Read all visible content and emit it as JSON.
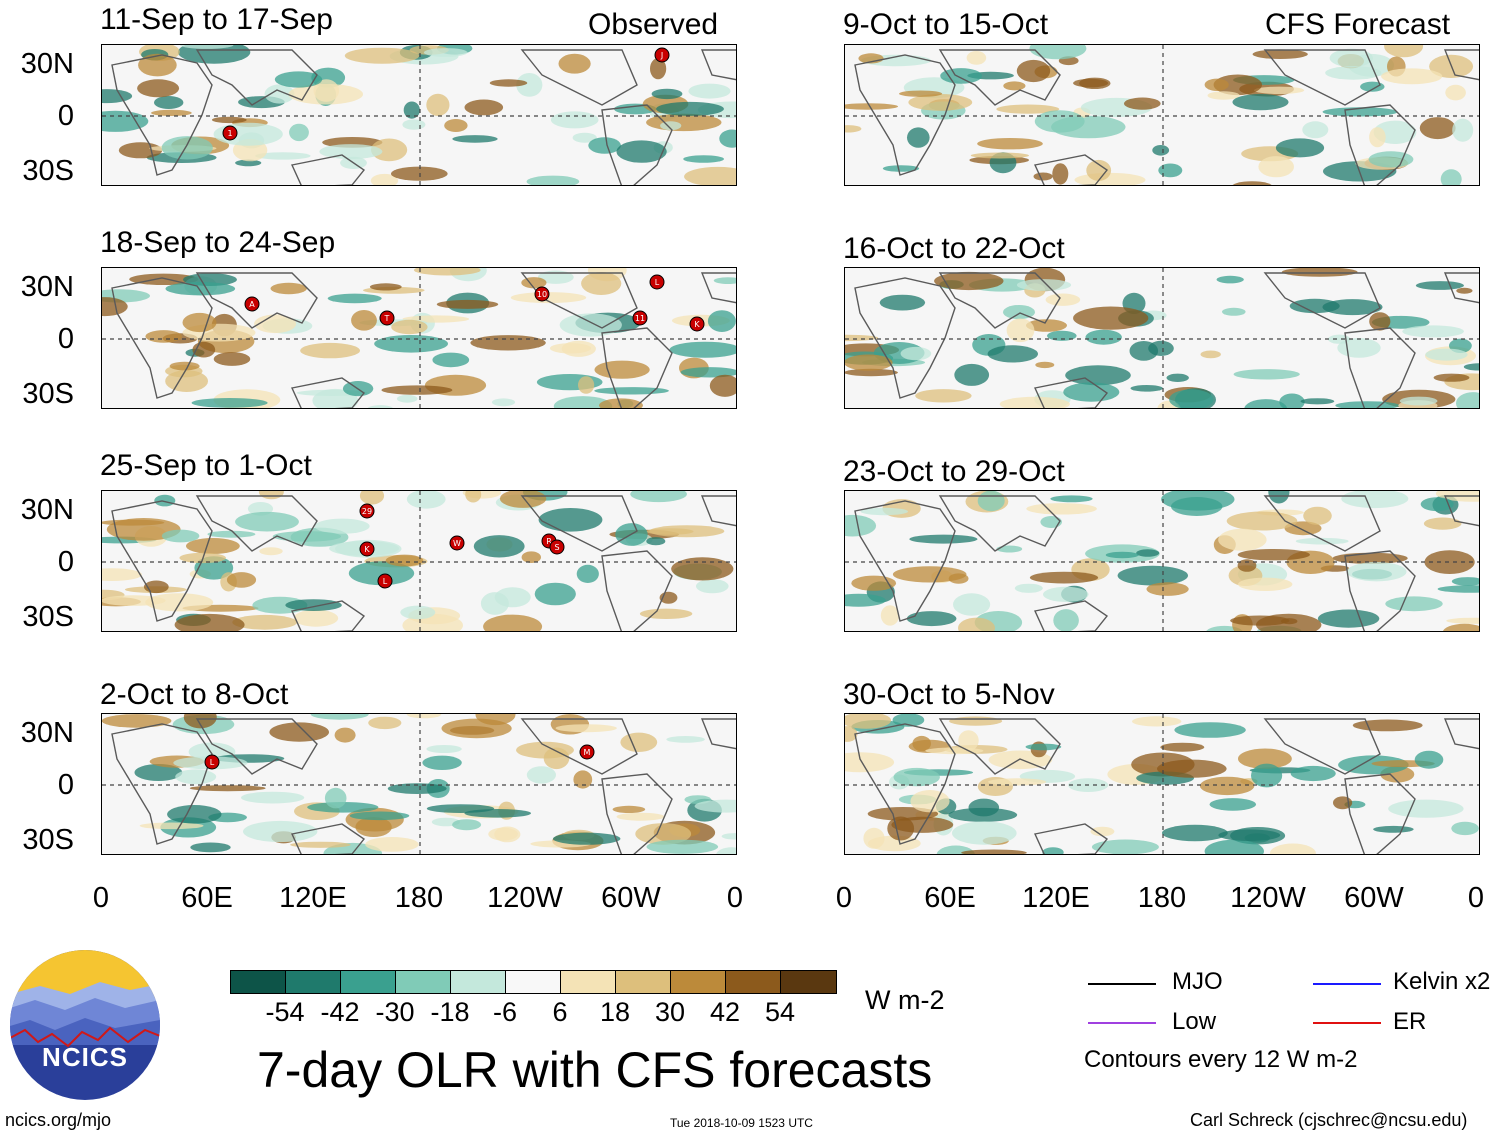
{
  "title": "7-day OLR with CFS forecasts",
  "observed_label": "Observed",
  "forecast_label": "CFS Forecast",
  "observed_panels": [
    {
      "period": "11-Sep to 17-Sep"
    },
    {
      "period": "18-Sep to 24-Sep"
    },
    {
      "period": "25-Sep to 1-Oct"
    },
    {
      "period": "2-Oct to 8-Oct"
    }
  ],
  "forecast_panels": [
    {
      "period": "9-Oct to 15-Oct"
    },
    {
      "period": "16-Oct to 22-Oct"
    },
    {
      "period": "23-Oct to 29-Oct"
    },
    {
      "period": "30-Oct to 5-Nov"
    }
  ],
  "lat_labels": [
    "30N",
    "0",
    "30S"
  ],
  "lon_labels": [
    "0",
    "60E",
    "120E",
    "180",
    "120W",
    "60W",
    "0"
  ],
  "colorbar": {
    "colors": [
      "#0d5448",
      "#1f7a6c",
      "#3aa08f",
      "#80cbb7",
      "#c4e8dc",
      "#f8f8f8",
      "#f4e3b6",
      "#ddbf7c",
      "#bc8a3a",
      "#8c5a1c",
      "#5a3810"
    ],
    "ticks": [
      "-54",
      "-42",
      "-30",
      "-18",
      "-6",
      "6",
      "18",
      "30",
      "42",
      "54"
    ],
    "units": "W m-2"
  },
  "legend": {
    "items": [
      {
        "label": "MJO",
        "color": "#000000"
      },
      {
        "label": "Kelvin x2",
        "color": "#1a1aff"
      },
      {
        "label": "Low",
        "color": "#a040e0"
      },
      {
        "label": "ER",
        "color": "#e01010"
      }
    ],
    "contour_note": "Contours every 12 W m-2"
  },
  "storms": [
    [
      "1",
      "J"
    ],
    [
      "A",
      "T",
      "10",
      "L",
      "11",
      "K"
    ],
    [
      "29",
      "K",
      "L",
      "W",
      "R",
      "S"
    ],
    [
      "L",
      "M"
    ]
  ],
  "logo_text": "NCICS",
  "footer": {
    "left": "ncics.org/mjo",
    "center": "Tue 2018-10-09 1523 UTC",
    "right": "Carl Schreck (cjschrec@ncsu.edu)"
  }
}
